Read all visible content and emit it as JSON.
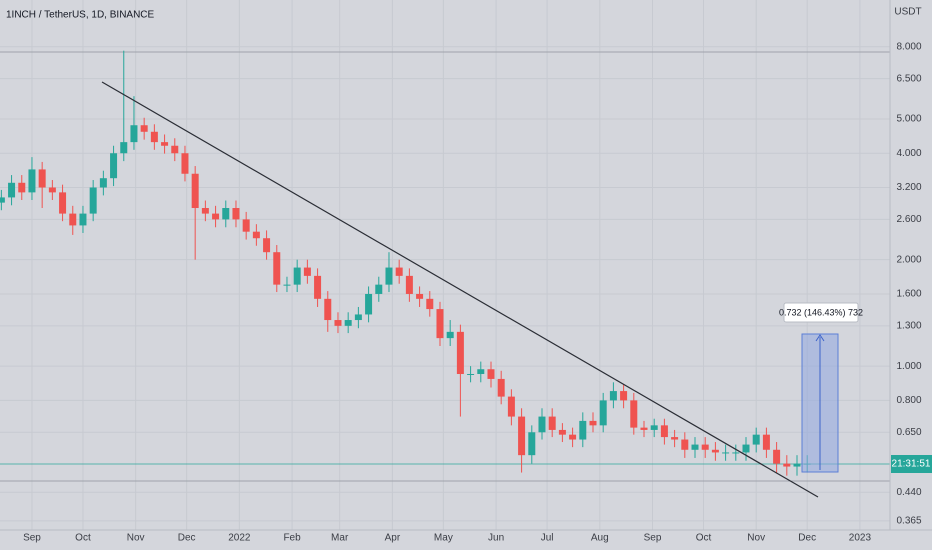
{
  "chart_data": {
    "type": "candlestick",
    "title": "1INCH / TetherUS, 1D, BINANCE",
    "y_axis_label": "USDT",
    "up_color": "#26a69a",
    "down_color": "#ef5350",
    "log_scale": true,
    "grid": true,
    "xlim": [
      -18.8,
      504.7
    ],
    "ylim": [
      0.344,
      10.85
    ],
    "xticks": [
      {
        "value": 0,
        "label": "Sep"
      },
      {
        "value": 30,
        "label": "Oct"
      },
      {
        "value": 61,
        "label": "Nov"
      },
      {
        "value": 91,
        "label": "Dec"
      },
      {
        "value": 122,
        "label": "2022"
      },
      {
        "value": 153,
        "label": "Feb"
      },
      {
        "value": 181,
        "label": "Mar"
      },
      {
        "value": 212,
        "label": "Apr"
      },
      {
        "value": 242,
        "label": "May"
      },
      {
        "value": 273,
        "label": "Jun"
      },
      {
        "value": 303,
        "label": "Jul"
      },
      {
        "value": 334,
        "label": "Aug"
      },
      {
        "value": 365,
        "label": "Sep"
      },
      {
        "value": 395,
        "label": "Oct"
      },
      {
        "value": 426,
        "label": "Nov"
      },
      {
        "value": 456,
        "label": "Dec"
      },
      {
        "value": 487,
        "label": "2023"
      }
    ],
    "yticks": [
      {
        "value": 8,
        "label": "8.000"
      },
      {
        "value": 6.5,
        "label": "6.500"
      },
      {
        "value": 5,
        "label": "5.000"
      },
      {
        "value": 4,
        "label": "4.000"
      },
      {
        "value": 3.2,
        "label": "3.200"
      },
      {
        "value": 2.6,
        "label": "2.600"
      },
      {
        "value": 2,
        "label": "2.000"
      },
      {
        "value": 1.6,
        "label": "1.600"
      },
      {
        "value": 1.3,
        "label": "1.300"
      },
      {
        "value": 1,
        "label": "1.000"
      },
      {
        "value": 0.8,
        "label": "0.800"
      },
      {
        "value": 0.65,
        "label": "0.650"
      },
      {
        "value": 0.44,
        "label": "0.440"
      },
      {
        "value": 0.365,
        "label": "0.365"
      }
    ],
    "x": [
      -18,
      -12,
      -6,
      0,
      6,
      12,
      18,
      24,
      30,
      36,
      42,
      48,
      54,
      60,
      66,
      72,
      78,
      84,
      90,
      96,
      102,
      108,
      114,
      120,
      126,
      132,
      138,
      144,
      150,
      156,
      162,
      168,
      174,
      180,
      186,
      192,
      198,
      204,
      210,
      216,
      222,
      228,
      234,
      240,
      246,
      252,
      258,
      264,
      270,
      276,
      282,
      288,
      294,
      300,
      306,
      312,
      318,
      324,
      330,
      336,
      342,
      348,
      354,
      360,
      366,
      372,
      378,
      384,
      390,
      396,
      402,
      408,
      414,
      420,
      426,
      432,
      438,
      444,
      450,
      456
    ],
    "open": [
      2.9,
      3.0,
      3.3,
      3.1,
      3.6,
      3.2,
      3.1,
      2.7,
      2.5,
      2.7,
      3.2,
      3.4,
      4.0,
      4.3,
      4.8,
      4.6,
      4.3,
      4.2,
      4.0,
      3.5,
      2.8,
      2.7,
      2.6,
      2.8,
      2.6,
      2.4,
      2.3,
      2.1,
      1.7,
      1.7,
      1.9,
      1.8,
      1.55,
      1.35,
      1.3,
      1.35,
      1.4,
      1.6,
      1.7,
      1.9,
      1.8,
      1.6,
      1.55,
      1.45,
      1.2,
      1.25,
      0.95,
      0.95,
      0.98,
      0.92,
      0.82,
      0.72,
      0.56,
      0.65,
      0.72,
      0.66,
      0.64,
      0.62,
      0.7,
      0.68,
      0.8,
      0.85,
      0.8,
      0.67,
      0.66,
      0.68,
      0.63,
      0.62,
      0.58,
      0.6,
      0.58,
      0.57,
      0.57,
      0.57,
      0.6,
      0.64,
      0.58,
      0.53,
      0.52,
      0.53
    ],
    "high": [
      3.15,
      3.47,
      3.47,
      3.9,
      3.78,
      3.36,
      3.26,
      2.84,
      2.84,
      3.36,
      3.57,
      4.2,
      7.8,
      5.8,
      5.04,
      4.83,
      4.52,
      4.41,
      4.2,
      3.68,
      2.94,
      2.84,
      2.94,
      2.94,
      2.73,
      2.52,
      2.42,
      2.2,
      1.79,
      2.0,
      2.0,
      1.89,
      1.63,
      1.42,
      1.42,
      1.47,
      1.68,
      1.79,
      2.1,
      2.0,
      1.89,
      1.68,
      1.63,
      1.52,
      1.35,
      1.31,
      1.0,
      1.03,
      1.03,
      0.97,
      0.86,
      0.76,
      0.68,
      0.76,
      0.76,
      0.69,
      0.67,
      0.74,
      0.74,
      0.84,
      0.9,
      0.89,
      0.84,
      0.7,
      0.71,
      0.71,
      0.66,
      0.65,
      0.63,
      0.63,
      0.61,
      0.6,
      0.6,
      0.63,
      0.67,
      0.67,
      0.61,
      0.56,
      0.56,
      0.56
    ],
    "low": [
      2.76,
      2.85,
      2.95,
      2.95,
      2.8,
      2.95,
      2.57,
      2.35,
      2.38,
      2.57,
      3.04,
      3.23,
      3.8,
      4.09,
      4.37,
      4.09,
      3.99,
      3.8,
      3.33,
      2.0,
      2.57,
      2.47,
      2.47,
      2.47,
      2.28,
      2.19,
      2.0,
      1.62,
      1.62,
      1.62,
      1.71,
      1.47,
      1.25,
      1.24,
      1.24,
      1.28,
      1.33,
      1.52,
      1.62,
      1.71,
      1.52,
      1.47,
      1.38,
      1.14,
      1.14,
      0.72,
      0.9,
      0.9,
      0.87,
      0.78,
      0.68,
      0.5,
      0.53,
      0.62,
      0.63,
      0.61,
      0.59,
      0.59,
      0.65,
      0.65,
      0.76,
      0.76,
      0.64,
      0.63,
      0.63,
      0.6,
      0.59,
      0.55,
      0.55,
      0.55,
      0.54,
      0.54,
      0.54,
      0.54,
      0.57,
      0.55,
      0.5,
      0.49,
      0.49,
      0.5
    ],
    "close": [
      3.0,
      3.3,
      3.1,
      3.6,
      3.2,
      3.1,
      2.7,
      2.5,
      2.7,
      3.2,
      3.4,
      4.0,
      4.3,
      4.8,
      4.6,
      4.3,
      4.2,
      4.0,
      3.5,
      2.8,
      2.7,
      2.6,
      2.8,
      2.6,
      2.4,
      2.3,
      2.1,
      1.7,
      1.7,
      1.9,
      1.8,
      1.55,
      1.35,
      1.3,
      1.35,
      1.4,
      1.6,
      1.7,
      1.9,
      1.8,
      1.6,
      1.55,
      1.45,
      1.2,
      1.25,
      0.95,
      0.95,
      0.98,
      0.92,
      0.82,
      0.72,
      0.56,
      0.65,
      0.72,
      0.66,
      0.64,
      0.62,
      0.7,
      0.68,
      0.8,
      0.85,
      0.8,
      0.67,
      0.66,
      0.68,
      0.63,
      0.62,
      0.58,
      0.6,
      0.58,
      0.57,
      0.57,
      0.57,
      0.6,
      0.64,
      0.58,
      0.53,
      0.52,
      0.53,
      0.53
    ],
    "annotations": {
      "measure_label": "0.732 (146.43%) 732",
      "countdown": "21:31:51"
    }
  }
}
